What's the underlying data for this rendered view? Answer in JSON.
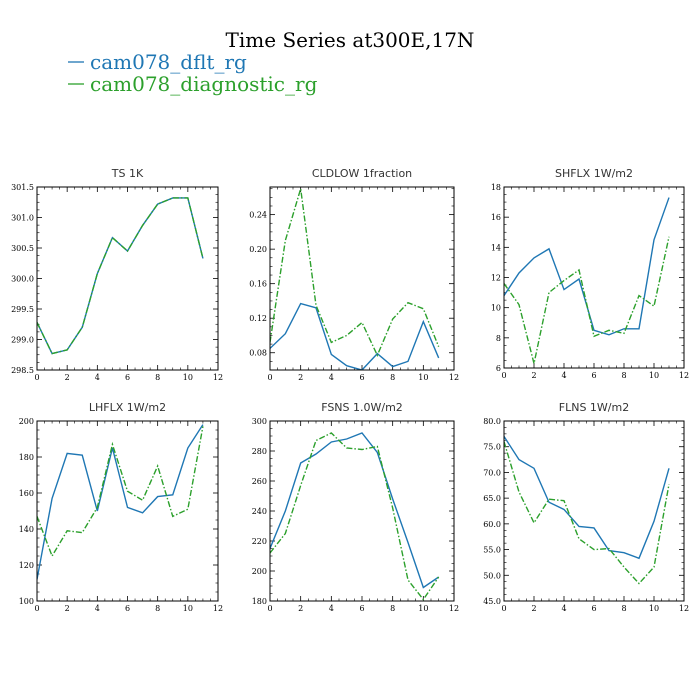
{
  "figure": {
    "title": "Time Series at300E,17N"
  },
  "legend": [
    {
      "name": "cam078_dflt_rg",
      "color": "#1f77b4",
      "dash": "solid"
    },
    {
      "name": "cam078_diagnostic_rg",
      "color": "#2ca02c",
      "dash": "dashdot"
    }
  ],
  "chart_data": [
    {
      "type": "line",
      "title": "TS   1K",
      "x": [
        0,
        1,
        2,
        3,
        4,
        5,
        6,
        7,
        8,
        9,
        10,
        11
      ],
      "xlim": [
        0,
        12
      ],
      "xticks": [
        0,
        2,
        4,
        6,
        8,
        10,
        12
      ],
      "ylim": [
        298.5,
        301.5
      ],
      "yticks": [
        298.5,
        299.0,
        299.5,
        300.0,
        300.5,
        301.0,
        301.5
      ],
      "ytick_decimals": 1,
      "series": [
        {
          "name": "cam078_dflt_rg",
          "values": [
            299.28,
            298.77,
            298.83,
            299.2,
            300.08,
            300.67,
            300.45,
            300.87,
            301.22,
            301.32,
            301.32,
            300.33
          ]
        },
        {
          "name": "cam078_diagnostic_rg",
          "values": [
            299.28,
            298.77,
            298.83,
            299.2,
            300.08,
            300.67,
            300.45,
            300.87,
            301.22,
            301.32,
            301.32,
            300.33
          ]
        }
      ]
    },
    {
      "type": "line",
      "title": "CLDLOW   1fraction",
      "x": [
        0,
        1,
        2,
        3,
        4,
        5,
        6,
        7,
        8,
        9,
        10,
        11
      ],
      "xlim": [
        0,
        12
      ],
      "xticks": [
        0,
        2,
        4,
        6,
        8,
        10,
        12
      ],
      "ylim": [
        0.06,
        0.272
      ],
      "yticks": [
        0.08,
        0.12,
        0.16,
        0.2,
        0.24
      ],
      "ytick_decimals": 2,
      "series": [
        {
          "name": "cam078_dflt_rg",
          "values": [
            0.085,
            0.102,
            0.137,
            0.132,
            0.078,
            0.065,
            0.06,
            0.079,
            0.064,
            0.07,
            0.116,
            0.074
          ]
        },
        {
          "name": "cam078_diagnostic_rg",
          "values": [
            0.092,
            0.21,
            0.27,
            0.135,
            0.092,
            0.1,
            0.115,
            0.077,
            0.119,
            0.138,
            0.131,
            0.087
          ]
        }
      ]
    },
    {
      "type": "line",
      "title": "SHFLX   1W/m2",
      "x": [
        0,
        1,
        2,
        3,
        4,
        5,
        6,
        7,
        8,
        9,
        10,
        11
      ],
      "xlim": [
        0,
        12
      ],
      "xticks": [
        0,
        2,
        4,
        6,
        8,
        10,
        12
      ],
      "ylim": [
        6,
        18
      ],
      "yticks": [
        6,
        8,
        10,
        12,
        14,
        16,
        18
      ],
      "ytick_decimals": 0,
      "series": [
        {
          "name": "cam078_dflt_rg",
          "values": [
            10.8,
            12.3,
            13.3,
            13.9,
            11.2,
            11.9,
            8.5,
            8.2,
            8.6,
            8.6,
            14.5,
            17.3
          ]
        },
        {
          "name": "cam078_diagnostic_rg",
          "values": [
            11.6,
            10.2,
            6.3,
            11.0,
            11.8,
            12.5,
            8.1,
            8.5,
            8.3,
            10.8,
            10.1,
            14.7
          ]
        }
      ]
    },
    {
      "type": "line",
      "title": "LHFLX   1W/m2",
      "x": [
        0,
        1,
        2,
        3,
        4,
        5,
        6,
        7,
        8,
        9,
        10,
        11
      ],
      "xlim": [
        0,
        12
      ],
      "xticks": [
        0,
        2,
        4,
        6,
        8,
        10,
        12
      ],
      "ylim": [
        100,
        200
      ],
      "yticks": [
        100,
        120,
        140,
        160,
        180,
        200
      ],
      "ytick_decimals": 0,
      "series": [
        {
          "name": "cam078_dflt_rg",
          "values": [
            112,
            157,
            182,
            181,
            150,
            185,
            152,
            149,
            158,
            159,
            185,
            198
          ]
        },
        {
          "name": "cam078_diagnostic_rg",
          "values": [
            147,
            125,
            139,
            138,
            152,
            187,
            161,
            156,
            175,
            147,
            151,
            197
          ]
        }
      ]
    },
    {
      "type": "line",
      "title": "FSNS   1.0W/m2",
      "x": [
        0,
        1,
        2,
        3,
        4,
        5,
        6,
        7,
        8,
        9,
        10,
        11
      ],
      "xlim": [
        0,
        12
      ],
      "xticks": [
        0,
        2,
        4,
        6,
        8,
        10,
        12
      ],
      "ylim": [
        180,
        300
      ],
      "yticks": [
        180,
        200,
        220,
        240,
        260,
        280,
        300
      ],
      "ytick_decimals": 0,
      "series": [
        {
          "name": "cam078_dflt_rg",
          "values": [
            215,
            240,
            272,
            278,
            286,
            288,
            292,
            279,
            248,
            219,
            189,
            196
          ]
        },
        {
          "name": "cam078_diagnostic_rg",
          "values": [
            212,
            225,
            257,
            287,
            292,
            282,
            281,
            283,
            242,
            194,
            181,
            196
          ]
        }
      ]
    },
    {
      "type": "line",
      "title": "FLNS   1W/m2",
      "x": [
        0,
        1,
        2,
        3,
        4,
        5,
        6,
        7,
        8,
        9,
        10,
        11
      ],
      "xlim": [
        0,
        12
      ],
      "xticks": [
        0,
        2,
        4,
        6,
        8,
        10,
        12
      ],
      "ylim": [
        45,
        80
      ],
      "yticks": [
        45,
        50,
        55,
        60,
        65,
        70,
        75,
        80
      ],
      "ytick_decimals": 1,
      "series": [
        {
          "name": "cam078_dflt_rg",
          "values": [
            77.0,
            72.5,
            70.8,
            64.2,
            62.8,
            59.5,
            59.2,
            54.8,
            54.4,
            53.3,
            60.5,
            70.8
          ]
        },
        {
          "name": "cam078_diagnostic_rg",
          "values": [
            76.0,
            66.2,
            60.2,
            64.8,
            64.5,
            57.1,
            55.0,
            55.2,
            51.6,
            48.4,
            51.6,
            67.7
          ]
        }
      ]
    }
  ]
}
